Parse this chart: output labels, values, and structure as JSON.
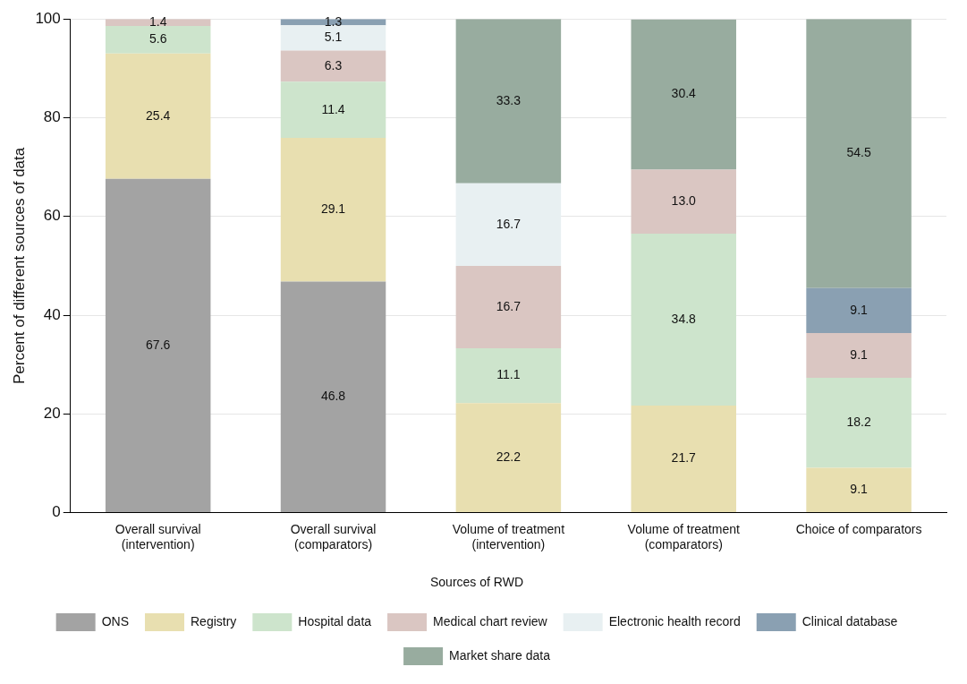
{
  "chart_data": {
    "type": "bar",
    "stacked": true,
    "ylabel": "Percent of different sources of data",
    "legend_title": "Sources of RWD",
    "categories": [
      "Overall survival\n(intervention)",
      "Overall survival\n(comparators)",
      "Volume of treatment\n(intervention)",
      "Volume of treatment\n(comparators)",
      "Choice of comparators"
    ],
    "series": [
      {
        "name": "ONS",
        "color": "#a3a3a3",
        "values": [
          67.6,
          46.8,
          null,
          null,
          null
        ],
        "value_labels": [
          "67.6",
          "46.8",
          null,
          null,
          null
        ]
      },
      {
        "name": "Registry",
        "color": "#e8dfb0",
        "values": [
          25.4,
          29.1,
          22.2,
          21.7,
          9.1
        ],
        "value_labels": [
          "25.4",
          "29.1",
          "22.2",
          "21.7",
          "9.1"
        ]
      },
      {
        "name": "Hospital data",
        "color": "#cde4cc",
        "values": [
          5.6,
          11.4,
          11.1,
          34.8,
          18.2
        ],
        "value_labels": [
          "5.6",
          "11.4",
          "11.1",
          "34.8",
          "18.2"
        ]
      },
      {
        "name": "Medical chart review",
        "color": "#dac6c2",
        "values": [
          1.4,
          6.3,
          16.7,
          13.0,
          9.1
        ],
        "value_labels": [
          "1.4",
          "6.3",
          "16.7",
          "13.0",
          "9.1"
        ]
      },
      {
        "name": "Electronic health record",
        "color": "#e8f0f2",
        "values": [
          null,
          5.1,
          16.7,
          null,
          null
        ],
        "value_labels": [
          null,
          "5.1",
          "16.7",
          null,
          null
        ]
      },
      {
        "name": "Clinical database",
        "color": "#8aa0b2",
        "values": [
          null,
          1.3,
          null,
          null,
          9.1
        ],
        "value_labels": [
          null,
          "1.3",
          null,
          null,
          "9.1"
        ]
      },
      {
        "name": "Market share data",
        "color": "#98ac9f",
        "values": [
          null,
          null,
          33.3,
          30.4,
          54.5
        ],
        "value_labels": [
          null,
          null,
          "33.3",
          "30.4",
          "54.5"
        ]
      }
    ],
    "ylim": [
      0,
      100
    ],
    "yticks": [
      0,
      20,
      40,
      60,
      80,
      100
    ],
    "grid": "y",
    "legend": "bottom"
  }
}
